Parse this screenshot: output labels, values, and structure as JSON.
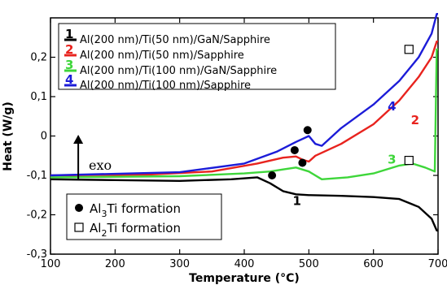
{
  "chart_data": {
    "type": "line",
    "xlabel": "Temperature (°C)",
    "ylabel": "Heat (W/g)",
    "xlim": [
      100,
      700
    ],
    "ylim": [
      -0.3,
      0.3
    ],
    "x_ticks": [
      100,
      200,
      300,
      400,
      500,
      600,
      700
    ],
    "y_ticks": [
      -0.3,
      -0.2,
      -0.1,
      0,
      0.1,
      0.2
    ],
    "x_tick_labels": [
      "100",
      "200",
      "300",
      "400",
      "500",
      "600",
      "700"
    ],
    "y_tick_labels": [
      "-0,3",
      "-0,2",
      "-0,1",
      "0",
      "0,1",
      "0,2"
    ],
    "legend_placement": "top-left",
    "series": [
      {
        "name": "Al(200 nm)/Ti(50 nm)/GaN/Sapphire",
        "number": "1",
        "color": "#000000",
        "x": [
          100,
          200,
          300,
          380,
          420,
          440,
          460,
          480,
          500,
          550,
          600,
          640,
          670,
          690,
          698,
          700
        ],
        "y": [
          -0.11,
          -0.112,
          -0.114,
          -0.11,
          -0.105,
          -0.12,
          -0.14,
          -0.148,
          -0.15,
          -0.152,
          -0.155,
          -0.16,
          -0.18,
          -0.21,
          -0.24,
          -0.24
        ],
        "label_at": [
          475,
          -0.175
        ]
      },
      {
        "name": "Al(200 nm)/Ti(50 nm)/Sapphire",
        "number": "2",
        "color": "#e8231e",
        "x": [
          100,
          250,
          350,
          420,
          460,
          480,
          490,
          500,
          510,
          550,
          600,
          640,
          670,
          690,
          698,
          700
        ],
        "y": [
          -0.1,
          -0.098,
          -0.09,
          -0.07,
          -0.055,
          -0.052,
          -0.06,
          -0.065,
          -0.05,
          -0.02,
          0.03,
          0.09,
          0.15,
          0.2,
          0.24,
          0.24
        ],
        "label_at": [
          658,
          0.03
        ]
      },
      {
        "name": "Al(200 nm)/Ti(100 nm)/GaN/Sapphire",
        "number": "3",
        "color": "#3ed63a",
        "x": [
          100,
          300,
          400,
          440,
          460,
          480,
          500,
          520,
          560,
          600,
          640,
          660,
          680,
          695,
          698,
          700
        ],
        "y": [
          -0.105,
          -0.102,
          -0.095,
          -0.09,
          -0.085,
          -0.08,
          -0.09,
          -0.11,
          -0.105,
          -0.095,
          -0.075,
          -0.07,
          -0.08,
          -0.09,
          0.22,
          0.22
        ],
        "label_at": [
          622,
          -0.07
        ]
      },
      {
        "name": "Al(200 nm)/Ti(100 nm)/Sapphire",
        "number": "4",
        "color": "#1c1cd8",
        "x": [
          100,
          300,
          400,
          450,
          480,
          500,
          510,
          520,
          550,
          600,
          640,
          670,
          690,
          698,
          700
        ],
        "y": [
          -0.1,
          -0.092,
          -0.07,
          -0.04,
          -0.015,
          0.0,
          -0.02,
          -0.025,
          0.02,
          0.08,
          0.14,
          0.2,
          0.26,
          0.31,
          0.31
        ],
        "label_at": [
          622,
          0.065
        ]
      }
    ],
    "markers": {
      "al3ti": {
        "label_main": "Al",
        "label_sub": "3",
        "label_rest": "Ti formation",
        "points": [
          [
            443,
            -0.1
          ],
          [
            478,
            -0.036
          ],
          [
            490,
            -0.068
          ],
          [
            498,
            0.015
          ]
        ]
      },
      "al2ti": {
        "label_main": "Al",
        "label_sub": "2",
        "label_rest": "Ti formation",
        "points": [
          [
            655,
            -0.062
          ],
          [
            655,
            0.22
          ]
        ]
      }
    },
    "annotation": {
      "text": "exo",
      "arrow_x": 143,
      "arrow_y_from": -0.11,
      "arrow_y_to": 0.003
    }
  }
}
